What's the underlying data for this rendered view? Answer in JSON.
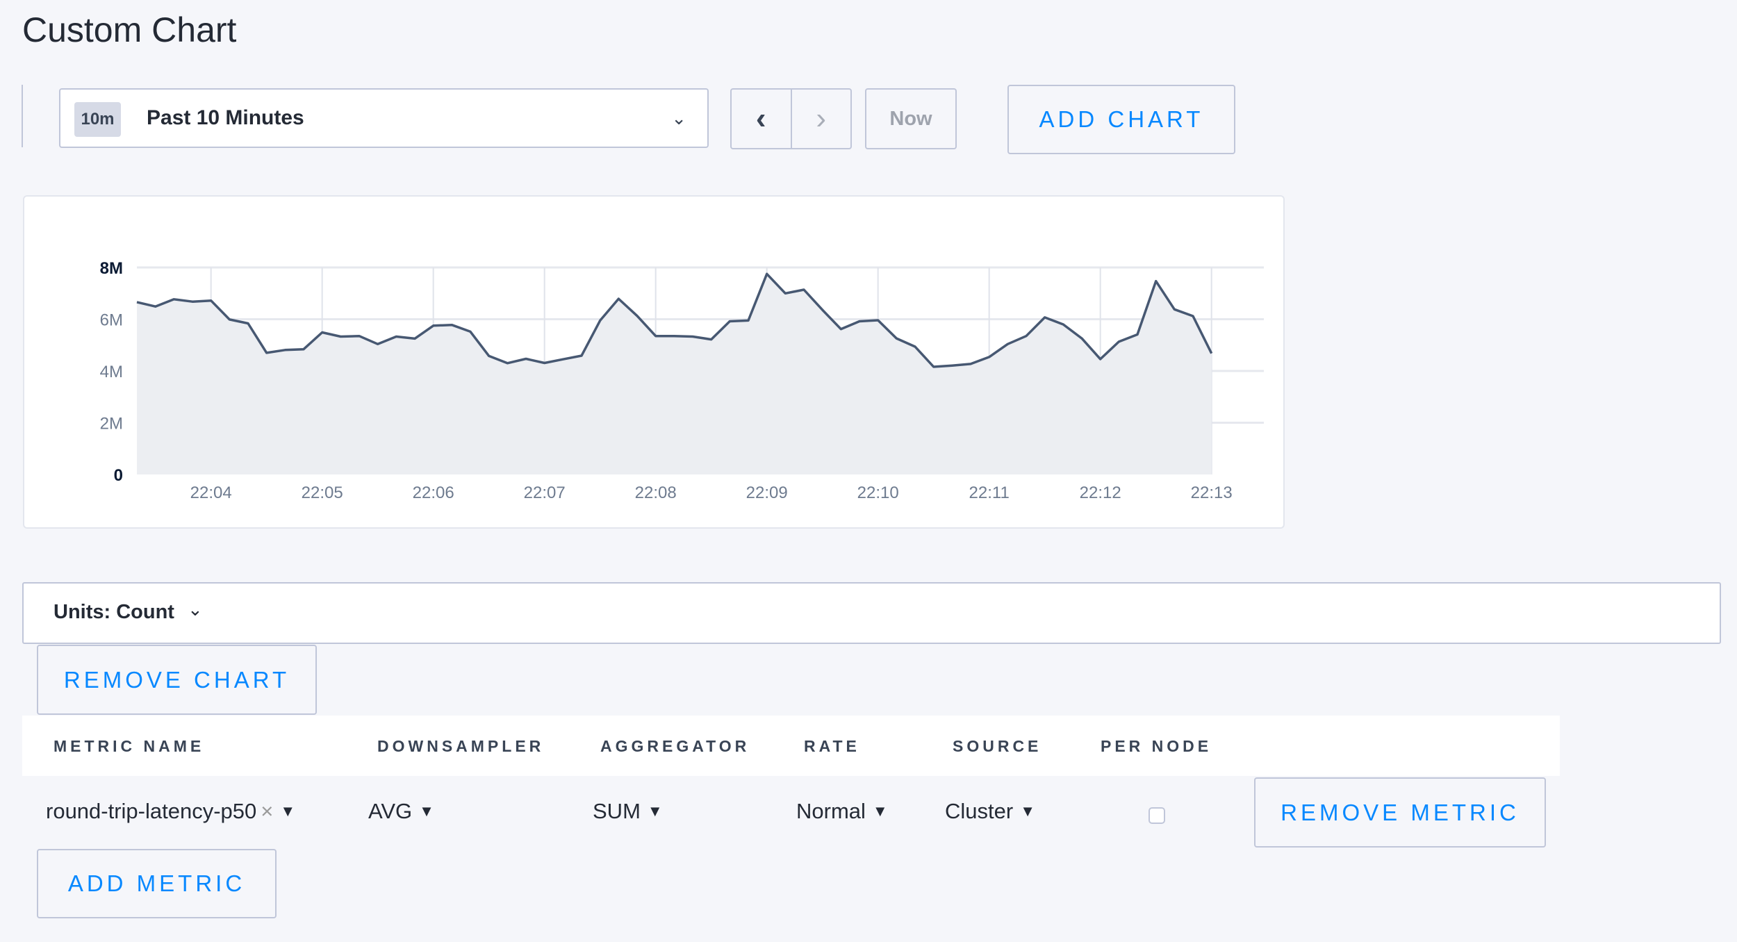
{
  "page": {
    "title": "Custom Chart"
  },
  "toolbar": {
    "range_badge": "10m",
    "range_label": "Past 10 Minutes",
    "prev_icon": "chevron-left-icon",
    "next_icon": "chevron-right-icon",
    "now_label": "Now",
    "add_chart_label": "ADD CHART"
  },
  "chart_data": {
    "type": "area",
    "title": "",
    "xlabel": "",
    "ylabel": "",
    "x_ticks": [
      "22:04",
      "22:05",
      "22:06",
      "22:07",
      "22:08",
      "22:09",
      "22:10",
      "22:11",
      "22:12",
      "22:13"
    ],
    "y_ticks": [
      "0",
      "2M",
      "4M",
      "6M",
      "8M"
    ],
    "ylim": [
      0,
      8000000
    ],
    "x_range": [
      "22:03:20",
      "22:13:00"
    ],
    "sample_interval_seconds": 10,
    "grid": true,
    "line_color": "#475872",
    "fill_color": "#eceef2",
    "values_millions": [
      6.66,
      6.49,
      6.77,
      6.68,
      6.72,
      5.99,
      5.84,
      4.7,
      4.81,
      4.84,
      5.49,
      5.33,
      5.35,
      5.04,
      5.33,
      5.25,
      5.75,
      5.78,
      5.52,
      4.58,
      4.3,
      4.47,
      4.31,
      4.45,
      4.59,
      5.95,
      6.79,
      6.13,
      5.35,
      5.35,
      5.33,
      5.22,
      5.92,
      5.95,
      7.75,
      7.0,
      7.14,
      6.36,
      5.62,
      5.92,
      5.96,
      5.26,
      4.94,
      4.16,
      4.21,
      4.27,
      4.54,
      5.04,
      5.35,
      6.07,
      5.8,
      5.26,
      4.46,
      5.13,
      5.41,
      7.47,
      6.38,
      6.12,
      4.68
    ]
  },
  "units": {
    "label": "Units: Count"
  },
  "remove_chart_label": "REMOVE CHART",
  "table": {
    "headers": [
      "METRIC NAME",
      "DOWNSAMPLER",
      "AGGREGATOR",
      "RATE",
      "SOURCE",
      "PER NODE"
    ],
    "row": {
      "metric": "round-trip-latency-p50",
      "downsampler": "AVG",
      "aggregator": "SUM",
      "rate": "Normal",
      "source": "Cluster",
      "per_node": false
    },
    "remove_metric_label": "REMOVE METRIC"
  },
  "add_metric_label": "ADD METRIC",
  "colors": {
    "accent": "#0788ff",
    "border": "#c0c6d9"
  }
}
